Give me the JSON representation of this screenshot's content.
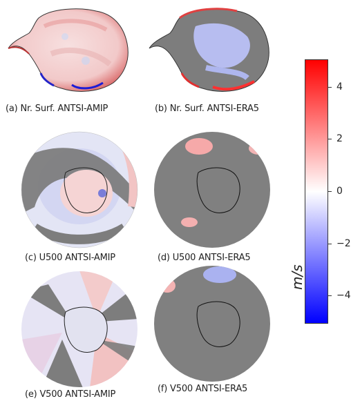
{
  "panels": [
    {
      "caption": "(a) Nr. Surf. ANTSI-AMIP"
    },
    {
      "caption": "(b) Nr. Surf. ANTSI-ERA5"
    },
    {
      "caption": "(c) U500 ANTSI-AMIP"
    },
    {
      "caption": "(d) U500 ANTSI-ERA5"
    },
    {
      "caption": "(e) V500 ANTSI-AMIP"
    },
    {
      "caption": "(f) V500 ANTSI-ERA5"
    }
  ],
  "colorbar": {
    "unit": "m/s",
    "ticks": [
      "4",
      "2",
      "0",
      "−2",
      "−4"
    ],
    "colors": {
      "max": "#ff0000",
      "mid": "#ffffff",
      "min": "#0000ff",
      "masked": "#808080"
    }
  }
}
